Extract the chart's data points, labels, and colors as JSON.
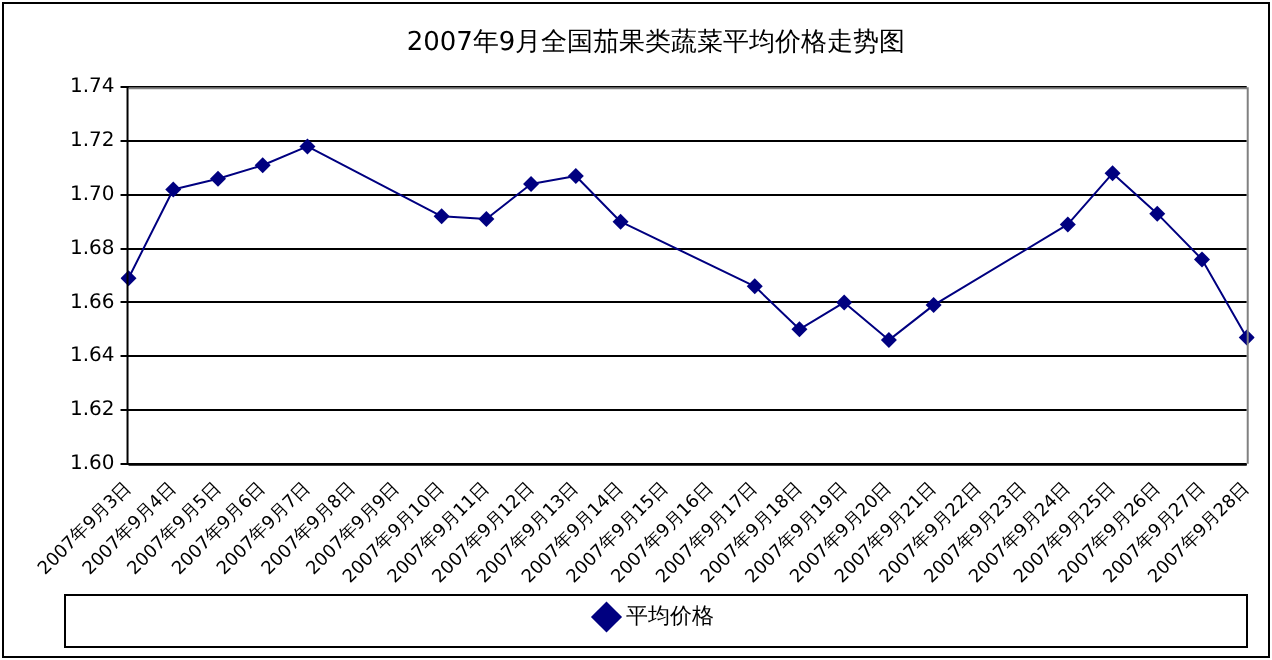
{
  "chart_data": {
    "type": "line",
    "title": "2007年9月全国茄果类蔬菜平均价格走势图",
    "categories": [
      "2007年9月3日",
      "2007年9月4日",
      "2007年9月5日",
      "2007年9月6日",
      "2007年9月7日",
      "2007年9月8日",
      "2007年9月9日",
      "2007年9月10日",
      "2007年9月11日",
      "2007年9月12日",
      "2007年9月13日",
      "2007年9月14日",
      "2007年9月15日",
      "2007年9月16日",
      "2007年9月17日",
      "2007年9月18日",
      "2007年9月19日",
      "2007年9月20日",
      "2007年9月21日",
      "2007年9月22日",
      "2007年9月23日",
      "2007年9月24日",
      "2007年9月25日",
      "2007年9月26日",
      "2007年9月27日",
      "2007年9月28日"
    ],
    "series": [
      {
        "name": "平均价格",
        "color": "#000080",
        "values": [
          1.669,
          1.702,
          1.706,
          1.711,
          1.718,
          null,
          null,
          1.692,
          1.691,
          1.704,
          1.707,
          1.69,
          null,
          null,
          1.666,
          1.65,
          1.66,
          1.646,
          1.659,
          null,
          null,
          1.689,
          1.708,
          1.693,
          1.676,
          1.647
        ]
      }
    ],
    "ylim": [
      1.6,
      1.74
    ],
    "yticks": [
      {
        "value": 1.6,
        "label": "1.60"
      },
      {
        "value": 1.62,
        "label": "1.62"
      },
      {
        "value": 1.64,
        "label": "1.64"
      },
      {
        "value": 1.66,
        "label": "1.66"
      },
      {
        "value": 1.68,
        "label": "1.68"
      },
      {
        "value": 1.7,
        "label": "1.70"
      },
      {
        "value": 1.72,
        "label": "1.72"
      },
      {
        "value": 1.74,
        "label": "1.74"
      }
    ],
    "grid": "y",
    "legend": "bottom",
    "marker": "diamond",
    "line_style": "solid"
  }
}
